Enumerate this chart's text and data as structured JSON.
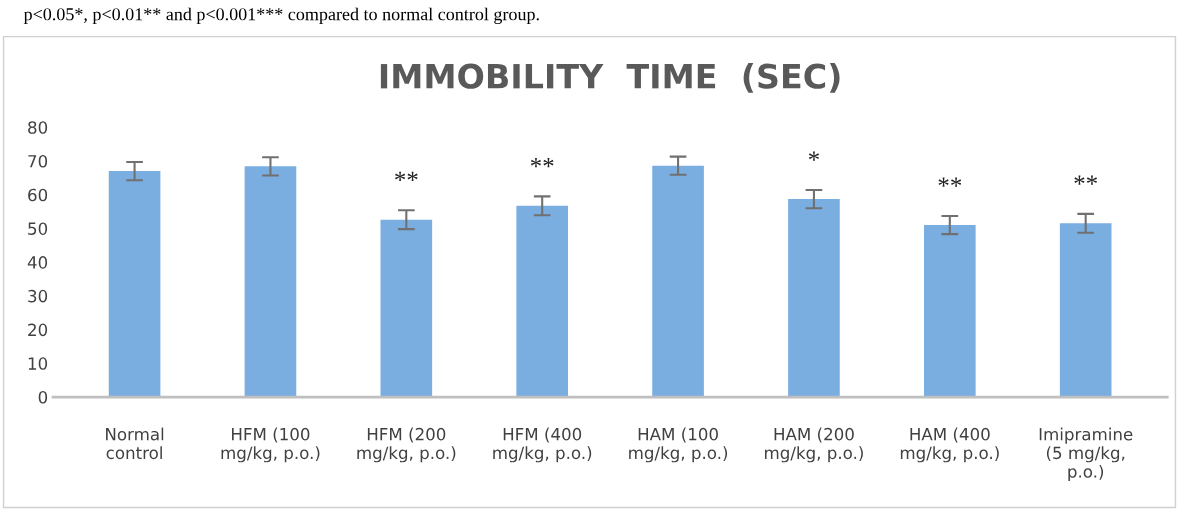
{
  "chart_data": {
    "type": "bar",
    "title": "IMMOBILITY  TIME  (SEC)",
    "categories": [
      "Normal\ncontrol",
      "HFM (100\nmg/kg, p.o.)",
      "HFM (200\nmg/kg, p.o.)",
      "HFM (400\nmg/kg, p.o.)",
      "HAM (100\nmg/kg, p.o.)",
      "HAM (200\nmg/kg, p.o.)",
      "HAM (400\nmg/kg, p.o.)",
      "Imipramine\n(5 mg/kg,\np.o.)"
    ],
    "values": [
      67.0,
      68.4,
      52.6,
      56.7,
      68.6,
      58.7,
      51.0,
      51.5
    ],
    "errors": [
      2.7,
      2.7,
      2.8,
      2.8,
      2.7,
      2.7,
      2.7,
      2.8
    ],
    "color": "#7aaee0",
    "ylim": [
      0,
      80
    ],
    "yticks": [
      0,
      10,
      20,
      30,
      40,
      50,
      60,
      70,
      80
    ],
    "grid": false,
    "legend": false,
    "annotations": [
      "p<0.05*, p<0.01** and p<0.001*** compared to normal control group."
    ],
    "value_labels": [
      null,
      null,
      "**",
      "**",
      null,
      "*",
      "**",
      "**"
    ]
  }
}
